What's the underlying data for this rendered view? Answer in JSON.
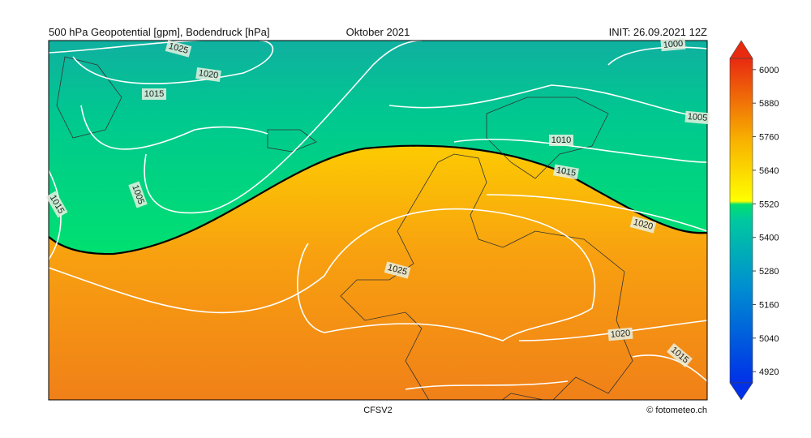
{
  "header": {
    "left": "500 hPa Geopotential [gpm], Bodendruck [hPa]",
    "center": "Oktober 2021",
    "right": "INIT: 26.09.2021 12Z"
  },
  "isobars": [
    "1025",
    "1020",
    "1015",
    "1005",
    "1015",
    "1000",
    "1005",
    "1010",
    "1015",
    "1020",
    "1025",
    "1020",
    "1015"
  ],
  "colorbar": {
    "lim": [
      4880,
      6040
    ],
    "ticks": [
      4920,
      5040,
      5160,
      5280,
      5400,
      5520,
      5640,
      5760,
      5880,
      6000
    ]
  },
  "footer": {
    "model": "CFSV2",
    "credit": "© fotometeo.ch"
  }
}
